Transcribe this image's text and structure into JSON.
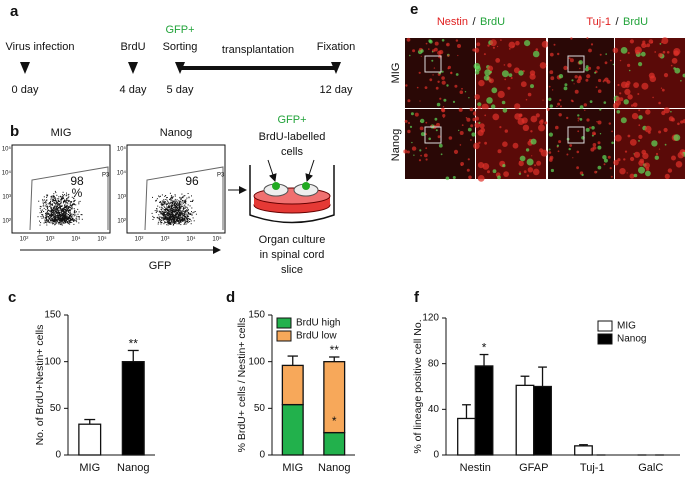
{
  "panel_a": {
    "label": "a",
    "events": [
      {
        "name": "Virus infection",
        "day": "0 day"
      },
      {
        "name": "BrdU",
        "day": "4 day"
      },
      {
        "marker": "GFP+",
        "name": "Sorting",
        "day": "5 day"
      },
      {
        "name": "Fixation",
        "day": "12 day"
      }
    ],
    "phase": "transplantation"
  },
  "panel_b": {
    "label": "b",
    "plots": [
      {
        "title": "MIG",
        "gate": "P3",
        "percent": [
          "98",
          "%"
        ]
      },
      {
        "title": "Nanog",
        "gate": "P3",
        "percent": [
          "96"
        ]
      }
    ],
    "axis_ticks": [
      "10²",
      "10³",
      "10⁴",
      "10⁵"
    ],
    "xlabel": "GFP",
    "cells": {
      "marker": "GFP+",
      "lines": [
        "BrdU-labelled",
        "cells"
      ]
    },
    "culture": [
      "Organ culture",
      "in spinal cord",
      "slice"
    ]
  },
  "panel_e": {
    "label": "e",
    "headers": [
      {
        "stain": "Nestin",
        "sep": "/",
        "counter": "BrdU"
      },
      {
        "stain": "Tuj-1",
        "sep": "/",
        "counter": "BrdU"
      }
    ],
    "rows": [
      "MIG",
      "Nanog"
    ]
  },
  "chart_data": [
    {
      "type": "bar",
      "label": "c",
      "ylabel": "No. of BrdU+Nestin+ cells",
      "categories": [
        "MIG",
        "Nanog"
      ],
      "values": [
        33,
        100
      ],
      "errors": [
        5,
        12
      ],
      "colors": [
        "#ffffff",
        "#000000"
      ],
      "ylim": [
        0,
        150
      ],
      "yticks": [
        0,
        50,
        100,
        150
      ],
      "annotations": [
        {
          "text": "**",
          "category": "Nanog"
        }
      ]
    },
    {
      "type": "bar",
      "label": "d",
      "stacked": true,
      "ylabel": "% BrdU+ cells / Nestin+ cells",
      "categories": [
        "MIG",
        "Nanog"
      ],
      "series": [
        {
          "name": "BrdU high",
          "color": "#22b14c",
          "values": [
            54,
            24
          ],
          "errors": [
            16,
            5
          ]
        },
        {
          "name": "BrdU low",
          "color": "#f7a85a",
          "values": [
            42,
            76
          ],
          "errors": [
            10,
            5
          ]
        }
      ],
      "ylim": [
        0,
        150
      ],
      "yticks": [
        0,
        50,
        100,
        150
      ],
      "legend": "upper left",
      "annotations": [
        {
          "text": "**",
          "category": "Nanog",
          "series": "BrdU low"
        },
        {
          "text": "*",
          "category": "Nanog",
          "series": "BrdU high"
        }
      ]
    },
    {
      "type": "bar",
      "label": "f",
      "ylabel": "% of lineage positive cell No.",
      "categories": [
        "Nestin",
        "GFAP",
        "Tuj-1",
        "GalC"
      ],
      "series": [
        {
          "name": "MIG",
          "color": "#ffffff",
          "values": [
            32,
            61,
            8,
            0
          ],
          "errors": [
            12,
            8,
            1,
            0
          ]
        },
        {
          "name": "Nanog",
          "color": "#000000",
          "values": [
            78,
            60,
            0,
            0
          ],
          "errors": [
            10,
            17,
            0,
            0
          ]
        }
      ],
      "ylim": [
        0,
        120
      ],
      "yticks": [
        0,
        40,
        80,
        120
      ],
      "legend": "upper right",
      "annotations": [
        {
          "text": "*",
          "category": "Nestin",
          "series": "Nanog"
        }
      ]
    }
  ]
}
